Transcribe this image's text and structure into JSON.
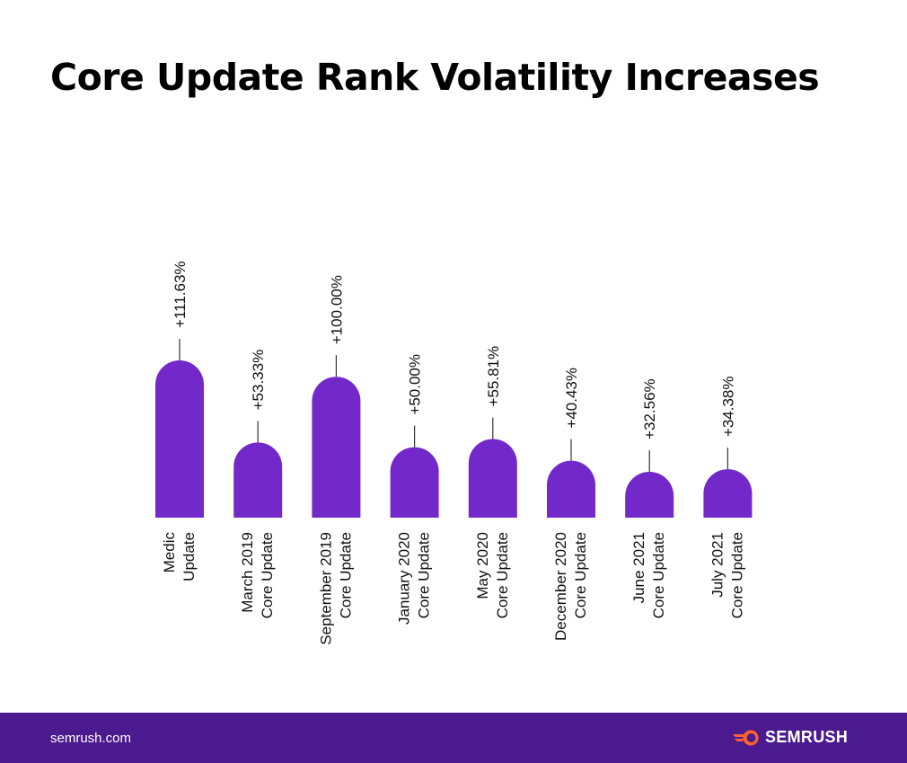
{
  "chart_data": {
    "type": "bar",
    "title": "Core Update Rank Volatility Increases",
    "categories": [
      [
        "Medic",
        "Update"
      ],
      [
        "March 2019",
        "Core Update"
      ],
      [
        "September 2019",
        "Core Update"
      ],
      [
        "January 2020",
        "Core Update"
      ],
      [
        "May 2020",
        "Core Update"
      ],
      [
        "December 2020",
        "Core Update"
      ],
      [
        "June 2021",
        "Core Update"
      ],
      [
        "July 2021",
        "Core Update"
      ]
    ],
    "values": [
      111.63,
      53.33,
      100.0,
      50.0,
      55.81,
      40.43,
      32.56,
      34.38
    ],
    "data_labels": [
      "+111.63%",
      "+53.33%",
      "+100.00%",
      "+50.00%",
      "+55.81%",
      "+40.43%",
      "+32.56%",
      "+34.38%"
    ],
    "xlabel": "",
    "ylabel": "",
    "grid": false,
    "colors": {
      "bar": "#7329c9",
      "footer": "#4b1a8e",
      "logo_accent": "#ff642d"
    }
  },
  "footer": {
    "site": "semrush.com",
    "brand": "SEMRUSH"
  }
}
